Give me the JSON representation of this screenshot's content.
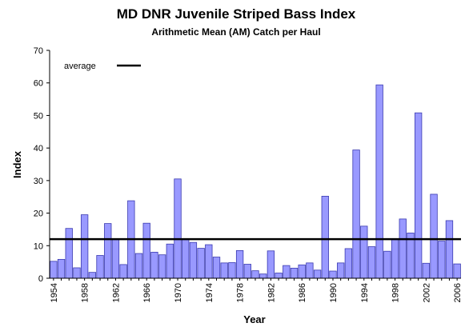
{
  "chart_data": {
    "type": "bar",
    "title": "MD DNR Juvenile Striped Bass Index",
    "subtitle": "Arithmetic Mean (AM) Catch per Haul",
    "xlabel": "Year",
    "ylabel": "Index",
    "ylim": [
      0,
      70
    ],
    "yticks": [
      0,
      10,
      20,
      30,
      40,
      50,
      60,
      70
    ],
    "grid": false,
    "legend": {
      "label": "average",
      "position": "top-left"
    },
    "average": 12,
    "bar_color": "#9999ff",
    "bar_edge_color": "#3a3ab0",
    "average_line_color": "#000000",
    "categories": [
      1954,
      1955,
      1956,
      1957,
      1958,
      1959,
      1960,
      1961,
      1962,
      1963,
      1964,
      1965,
      1966,
      1967,
      1968,
      1969,
      1970,
      1971,
      1972,
      1973,
      1974,
      1975,
      1976,
      1977,
      1978,
      1979,
      1980,
      1981,
      1982,
      1983,
      1984,
      1985,
      1986,
      1987,
      1988,
      1989,
      1990,
      1991,
      1992,
      1993,
      1994,
      1995,
      1996,
      1997,
      1998,
      1999,
      2000,
      2001,
      2002,
      2003,
      2004,
      2005,
      2006
    ],
    "values": [
      5.2,
      5.8,
      15.3,
      3.2,
      19.5,
      1.8,
      7.0,
      16.8,
      12.0,
      4.2,
      23.8,
      7.6,
      16.9,
      8.0,
      7.2,
      10.5,
      30.5,
      12.0,
      11.0,
      9.2,
      10.3,
      6.5,
      4.7,
      4.8,
      8.5,
      4.3,
      2.3,
      1.3,
      8.4,
      1.6,
      3.9,
      3.1,
      4.1,
      4.7,
      2.5,
      25.2,
      2.2,
      4.7,
      9.1,
      39.4,
      16.0,
      9.7,
      59.4,
      8.3,
      11.9,
      18.2,
      13.9,
      50.8,
      4.6,
      25.8,
      11.4,
      17.7,
      4.4
    ],
    "xtick_labels": [
      "1954",
      "1958",
      "1962",
      "1966",
      "1970",
      "1974",
      "1978",
      "1982",
      "1986",
      "1990",
      "1994",
      "1998",
      "2002",
      "2006"
    ]
  }
}
